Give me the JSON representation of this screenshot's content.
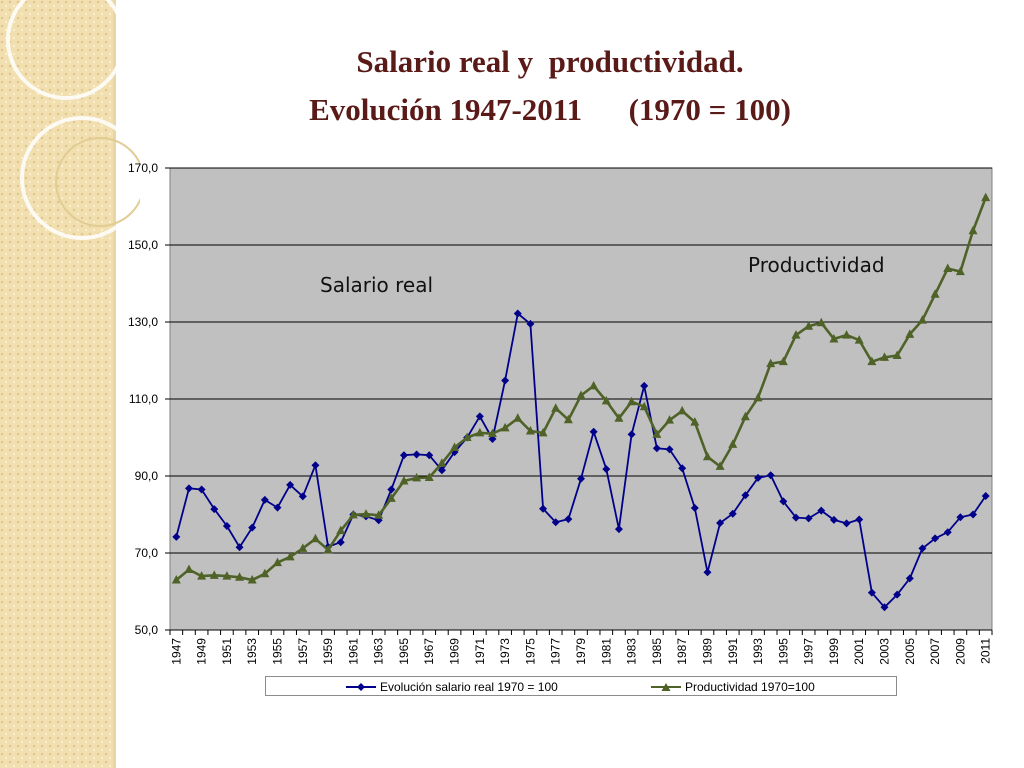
{
  "slide": {
    "title_line1": "Salario real y  productividad.",
    "title_line2": "Evolución 1947-2011      (1970 = 100)",
    "colors": {
      "title": "#5a1a17",
      "plot_bg": "#c0c0c0",
      "strip": "#f1dfb0"
    }
  },
  "annotations": {
    "salario": "Salario real",
    "productividad": "Productividad"
  },
  "chart_data": {
    "type": "line",
    "title": "",
    "xlabel": "",
    "ylabel": "",
    "ylim": [
      50,
      170
    ],
    "yticks": [
      "50,0",
      "70,0",
      "90,0",
      "110,0",
      "130,0",
      "150,0",
      "170,0"
    ],
    "xticks": [
      "1947",
      "1949",
      "1951",
      "1953",
      "1955",
      "1957",
      "1959",
      "1961",
      "1963",
      "1965",
      "1967",
      "1969",
      "1971",
      "1973",
      "1975",
      "1977",
      "1979",
      "1981",
      "1983",
      "1985",
      "1987",
      "1989",
      "1991",
      "1993",
      "1995",
      "1997",
      "1999",
      "2001",
      "2003",
      "2005",
      "2007",
      "2009",
      "2011"
    ],
    "x": [
      1947,
      1948,
      1949,
      1950,
      1951,
      1952,
      1953,
      1954,
      1955,
      1956,
      1957,
      1958,
      1959,
      1960,
      1961,
      1962,
      1963,
      1964,
      1965,
      1966,
      1967,
      1968,
      1969,
      1970,
      1971,
      1972,
      1973,
      1974,
      1975,
      1976,
      1977,
      1978,
      1979,
      1980,
      1981,
      1982,
      1983,
      1984,
      1985,
      1986,
      1987,
      1988,
      1989,
      1990,
      1991,
      1992,
      1993,
      1994,
      1995,
      1996,
      1997,
      1998,
      1999,
      2000,
      2001,
      2002,
      2003,
      2004,
      2005,
      2006,
      2007,
      2008,
      2009,
      2010,
      2011
    ],
    "grid": true,
    "legend_position": "bottom",
    "series": [
      {
        "name": "Evolución salario real 1970 = 100",
        "color": "#00008b",
        "marker": "diamond",
        "values": [
          74.2,
          86.8,
          86.5,
          81.4,
          77.0,
          71.5,
          76.6,
          83.8,
          81.8,
          87.7,
          84.7,
          92.8,
          71.6,
          72.8,
          80.0,
          79.5,
          78.5,
          86.5,
          95.4,
          95.6,
          95.4,
          91.5,
          96.2,
          100.0,
          105.5,
          99.6,
          114.8,
          132.2,
          129.5,
          81.5,
          78.0,
          78.8,
          89.3,
          101.5,
          91.8,
          76.2,
          100.8,
          113.4,
          97.2,
          96.9,
          92.0,
          81.7,
          65.0,
          77.8,
          80.2,
          85.0,
          89.5,
          90.2,
          83.4,
          79.2,
          79.0,
          81.0,
          78.6,
          77.7,
          78.7,
          59.7,
          55.9,
          59.2,
          63.4,
          71.2,
          73.8,
          75.4,
          79.3,
          80.0,
          84.8
        ]
      },
      {
        "name": "Productividad 1970=100",
        "color": "#4f6228",
        "marker": "triangle",
        "values": [
          63.0,
          65.7,
          64.0,
          64.2,
          64.0,
          63.7,
          63.0,
          64.6,
          67.5,
          69.0,
          71.2,
          73.7,
          70.8,
          75.8,
          79.9,
          80.1,
          79.8,
          84.2,
          88.7,
          89.5,
          89.6,
          93.3,
          97.4,
          100.0,
          101.2,
          101.0,
          102.5,
          105.0,
          101.7,
          101.2,
          107.6,
          104.6,
          110.9,
          113.4,
          109.5,
          105.0,
          109.3,
          108.0,
          100.8,
          104.5,
          106.9,
          104.0,
          95.0,
          92.5,
          98.2,
          105.4,
          110.3,
          119.2,
          119.7,
          126.6,
          128.9,
          129.8,
          125.6,
          126.6,
          125.3,
          119.7,
          120.8,
          121.3,
          126.8,
          130.5,
          137.2,
          143.9,
          143.1,
          153.7,
          162.3
        ]
      }
    ]
  }
}
